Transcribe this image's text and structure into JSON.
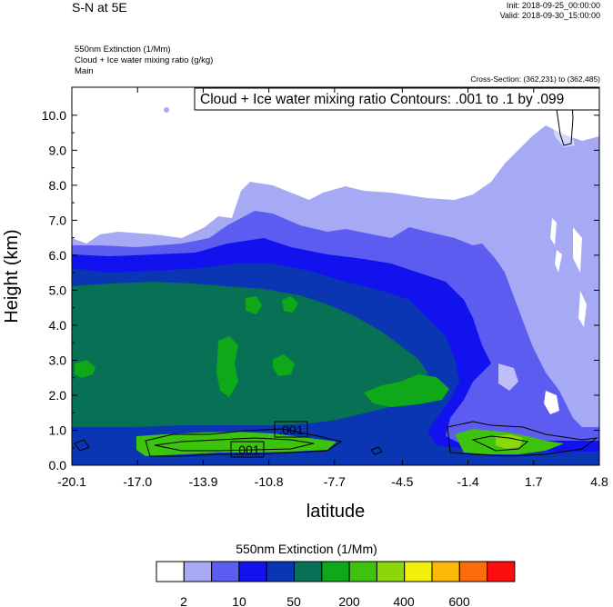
{
  "header": {
    "title": "S-N at 5E",
    "init": "Init: 2018-09-25_00:00:00",
    "valid": "Valid: 2018-09-30_15:00:00",
    "field1": "550nm Extinction   (1/Mm)",
    "field2": "Cloud + Ice water mixing ratio   (g/kg)",
    "field3": "Main",
    "cross_section": "Cross-Section: (362,231) to (362,485)"
  },
  "chart_data": {
    "type": "heatmap",
    "title": "",
    "contour_label": "Cloud + Ice water mixing ratio Contours: .001 to .1 by .099",
    "xlabel": "latitude",
    "ylabel": "Height (km)",
    "xlim": [
      -20.1,
      4.8
    ],
    "ylim": [
      0,
      10.8
    ],
    "x_ticks": [
      "-20.1",
      "-17.0",
      "-13.9",
      "-10.8",
      "-7.7",
      "-4.5",
      "-1.4",
      "1.7",
      "4.8"
    ],
    "y_ticks": [
      "0.0",
      "1.0",
      "2.0",
      "3.0",
      "4.0",
      "5.0",
      "6.0",
      "7.0",
      "8.0",
      "9.0",
      "10.0"
    ],
    "contour_labels": [
      ".001",
      ".001"
    ],
    "legend": {
      "title": "550nm Extinction  (1/Mm)",
      "colors": [
        "#ffffff",
        "#a6aaf4",
        "#5c5cf0",
        "#1212ee",
        "#0a36b4",
        "#077055",
        "#0ea818",
        "#3dc20e",
        "#8cd60c",
        "#f0f00c",
        "#fcb808",
        "#fb6c0a",
        "#fa0e0e"
      ],
      "labels": [
        "2",
        "10",
        "50",
        "200",
        "400",
        "600"
      ]
    }
  }
}
